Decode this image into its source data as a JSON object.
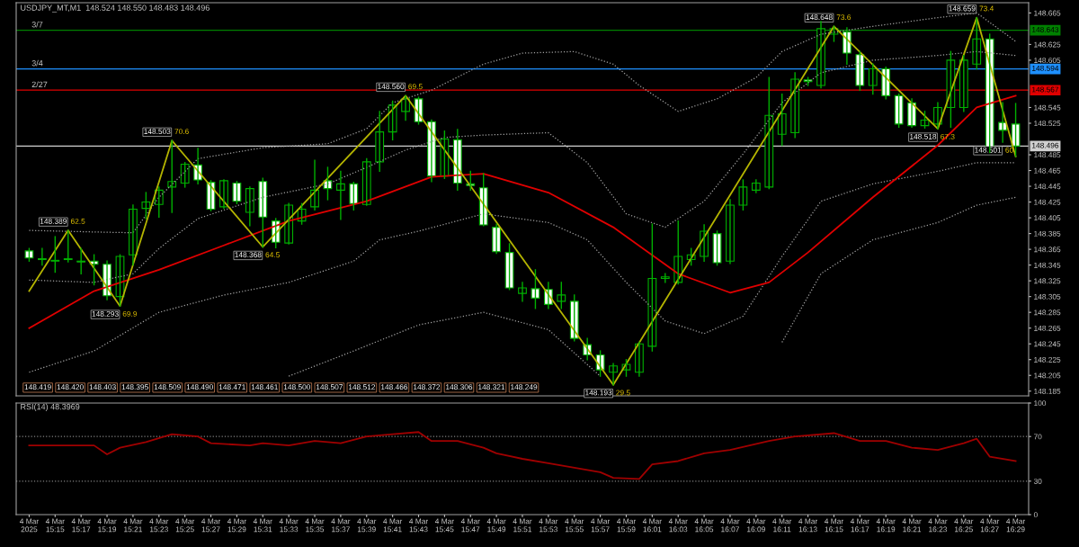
{
  "chart_data": [
    {
      "type": "candlestick",
      "title": "USDJPY_MT,M1  148.524 148.550 148.483 148.496",
      "tick_labels": "y",
      "xlim": [
        "2025-03-04T15:12",
        "2025-03-04T16:30"
      ],
      "ylim": [
        148.179,
        148.678
      ],
      "yticks": [
        148.185,
        148.205,
        148.225,
        148.245,
        148.265,
        148.285,
        148.305,
        148.325,
        148.345,
        148.365,
        148.385,
        148.405,
        148.425,
        148.445,
        148.465,
        148.485,
        148.525,
        148.545,
        148.605,
        148.625,
        148.665
      ],
      "series": [
        {
          "type": "line",
          "color": "#a0a0a0",
          "line_style": "dotted",
          "x": [
            "2025-03-04T15:13",
            "2025-03-04T15:18",
            "2025-03-04T15:21",
            "2025-03-04T15:23",
            "2025-03-04T15:26",
            "2025-03-04T15:31",
            "2025-03-04T15:36",
            "2025-03-04T15:39",
            "2025-03-04T15:41",
            "2025-03-04T15:44",
            "2025-03-04T15:48",
            "2025-03-04T15:51",
            "2025-03-04T15:55",
            "2025-03-04T15:58",
            "2025-03-04T16:00",
            "2025-03-04T16:03",
            "2025-03-04T16:06",
            "2025-03-04T16:09",
            "2025-03-04T16:11",
            "2025-03-04T16:14",
            "2025-03-04T16:18",
            "2025-03-04T16:23",
            "2025-03-04T16:26",
            "2025-03-04T16:29"
          ],
          "values": [
            148.389,
            148.387,
            148.386,
            148.431,
            148.48,
            148.494,
            148.499,
            148.518,
            148.551,
            148.567,
            148.6,
            148.614,
            148.616,
            148.6,
            148.573,
            148.54,
            148.556,
            148.583,
            148.616,
            148.638,
            148.648,
            148.659,
            148.665,
            148.629
          ]
        },
        {
          "type": "line",
          "color": "#a0a0a0",
          "line_style": "dotted",
          "x": [
            "2025-03-04T15:13",
            "2025-03-04T15:18",
            "2025-03-04T15:21",
            "2025-03-04T15:23",
            "2025-03-04T15:26",
            "2025-03-04T15:31",
            "2025-03-04T15:36",
            "2025-03-04T15:39",
            "2025-03-04T15:42",
            "2025-03-04T15:45",
            "2025-03-04T15:48",
            "2025-03-04T15:53",
            "2025-03-04T15:56",
            "2025-03-04T15:59",
            "2025-03-04T16:02",
            "2025-03-04T16:05",
            "2025-03-04T16:08",
            "2025-03-04T16:11",
            "2025-03-04T16:14",
            "2025-03-04T16:18",
            "2025-03-04T16:23",
            "2025-03-04T16:26",
            "2025-03-04T16:29"
          ],
          "values": [
            148.326,
            148.323,
            148.334,
            148.366,
            148.404,
            148.431,
            148.448,
            148.469,
            148.491,
            148.507,
            148.51,
            148.513,
            148.475,
            148.41,
            148.393,
            148.426,
            148.486,
            148.551,
            148.589,
            148.605,
            148.611,
            148.616,
            148.611
          ]
        },
        {
          "type": "line",
          "color": "#a0a0a0",
          "line_style": "dotted",
          "x": [
            "2025-03-04T15:13",
            "2025-03-04T15:18",
            "2025-03-04T15:23",
            "2025-03-04T15:28",
            "2025-03-04T15:33",
            "2025-03-04T15:38",
            "2025-03-04T15:40",
            "2025-03-04T15:43",
            "2025-03-04T15:48",
            "2025-03-04T15:53",
            "2025-03-04T15:56",
            "2025-03-04T15:59",
            "2025-03-04T16:02",
            "2025-03-04T16:05",
            "2025-03-04T16:08",
            "2025-03-04T16:11",
            "2025-03-04T16:14",
            "2025-03-04T16:18",
            "2025-03-04T16:23",
            "2025-03-04T16:26",
            "2025-03-04T16:29"
          ],
          "values": [
            148.209,
            148.236,
            148.285,
            148.307,
            148.323,
            148.35,
            148.377,
            148.388,
            148.41,
            148.399,
            148.377,
            148.323,
            148.274,
            148.258,
            148.28,
            148.356,
            148.426,
            148.448,
            148.464,
            148.475,
            148.475
          ]
        },
        {
          "type": "line",
          "color": "#a0a0a0",
          "line_style": "dotted",
          "x": [
            "2025-03-04T15:33",
            "2025-03-04T15:38",
            "2025-03-04T15:43",
            "2025-03-04T15:48",
            "2025-03-04T15:53",
            "2025-03-04T15:57",
            "2025-03-04T16:03",
            "2025-03-04T16:11",
            "2025-03-04T16:14",
            "2025-03-04T16:18",
            "2025-03-04T16:23",
            "2025-03-04T16:26",
            "2025-03-04T16:29"
          ],
          "values": [
            148.204,
            148.236,
            148.269,
            148.285,
            148.263,
            148.204,
            null,
            148.247,
            148.334,
            148.377,
            148.399,
            148.421,
            148.431
          ]
        },
        {
          "type": "line",
          "color": "#e00000",
          "line_style": "solid",
          "x": [
            "2025-03-04T15:13",
            "2025-03-04T15:18",
            "2025-03-04T15:23",
            "2025-03-04T15:28",
            "2025-03-04T15:33",
            "2025-03-04T15:39",
            "2025-03-04T15:44",
            "2025-03-04T15:48",
            "2025-03-04T15:53",
            "2025-03-04T15:58",
            "2025-03-04T16:03",
            "2025-03-04T16:07",
            "2025-03-04T16:10",
            "2025-03-04T16:13",
            "2025-03-04T16:18",
            "2025-03-04T16:23",
            "2025-03-04T16:26",
            "2025-03-04T16:29"
          ],
          "values": [
            148.265,
            148.312,
            148.339,
            148.37,
            148.401,
            148.426,
            148.457,
            148.461,
            148.437,
            148.393,
            148.334,
            148.31,
            148.323,
            148.361,
            148.431,
            148.497,
            148.545,
            148.56
          ]
        },
        {
          "type": "line",
          "color": "#b4b400",
          "line_style": "solid",
          "x": [
            "2025-03-04T15:13",
            "2025-03-04T15:16",
            "2025-03-04T15:20",
            "2025-03-04T15:24",
            "2025-03-04T15:31",
            "2025-03-04T15:42",
            "2025-03-04T15:58",
            "2025-03-04T16:15",
            "2025-03-04T16:23",
            "2025-03-04T16:26",
            "2025-03-04T16:29"
          ],
          "values": [
            148.312,
            148.389,
            148.293,
            148.503,
            148.368,
            148.56,
            148.193,
            148.648,
            148.518,
            148.659,
            148.483
          ]
        },
        {
          "type": "candlestick",
          "color": "#00b000",
          "x": [
            "2025-03-04T15:13",
            "2025-03-04T15:14",
            "2025-03-04T15:15",
            "2025-03-04T15:16",
            "2025-03-04T15:17",
            "2025-03-04T15:18",
            "2025-03-04T15:19",
            "2025-03-04T15:20",
            "2025-03-04T15:21",
            "2025-03-04T15:22",
            "2025-03-04T15:23",
            "2025-03-04T15:24",
            "2025-03-04T15:25",
            "2025-03-04T15:26",
            "2025-03-04T15:27",
            "2025-03-04T15:28",
            "2025-03-04T15:29",
            "2025-03-04T15:30",
            "2025-03-04T15:31",
            "2025-03-04T15:32",
            "2025-03-04T15:33",
            "2025-03-04T15:34",
            "2025-03-04T15:35",
            "2025-03-04T15:36",
            "2025-03-04T15:37",
            "2025-03-04T15:38",
            "2025-03-04T15:39",
            "2025-03-04T15:40",
            "2025-03-04T15:41",
            "2025-03-04T15:42",
            "2025-03-04T15:43",
            "2025-03-04T15:44",
            "2025-03-04T15:45",
            "2025-03-04T15:46",
            "2025-03-04T15:47",
            "2025-03-04T15:48",
            "2025-03-04T15:49",
            "2025-03-04T15:50",
            "2025-03-04T15:51",
            "2025-03-04T15:52",
            "2025-03-04T15:53",
            "2025-03-04T15:54",
            "2025-03-04T15:55",
            "2025-03-04T15:56",
            "2025-03-04T15:57",
            "2025-03-04T15:58",
            "2025-03-04T15:59",
            "2025-03-04T16:00",
            "2025-03-04T16:01",
            "2025-03-04T16:02",
            "2025-03-04T16:03",
            "2025-03-04T16:04",
            "2025-03-04T16:05",
            "2025-03-04T16:06",
            "2025-03-04T16:07",
            "2025-03-04T16:08",
            "2025-03-04T16:09",
            "2025-03-04T16:10",
            "2025-03-04T16:11",
            "2025-03-04T16:12",
            "2025-03-04T16:13",
            "2025-03-04T16:14",
            "2025-03-04T16:15",
            "2025-03-04T16:16",
            "2025-03-04T16:17",
            "2025-03-04T16:18",
            "2025-03-04T16:19",
            "2025-03-04T16:20",
            "2025-03-04T16:21",
            "2025-03-04T16:22",
            "2025-03-04T16:23",
            "2025-03-04T16:24",
            "2025-03-04T16:25",
            "2025-03-04T16:26",
            "2025-03-04T16:27",
            "2025-03-04T16:28",
            "2025-03-04T16:29"
          ],
          "ohlc": [
            [
              148.363,
              148.366,
              148.35,
              148.354
            ],
            [
              148.353,
              148.366,
              148.345,
              148.352
            ],
            [
              148.35,
              148.381,
              148.336,
              148.351
            ],
            [
              148.352,
              148.389,
              148.349,
              148.353
            ],
            [
              148.35,
              148.366,
              148.334,
              148.349
            ],
            [
              148.35,
              148.358,
              148.32,
              148.346
            ],
            [
              148.346,
              148.35,
              148.301,
              148.306
            ],
            [
              148.305,
              148.358,
              148.293,
              148.356
            ],
            [
              148.358,
              148.421,
              148.345,
              148.416
            ],
            [
              148.417,
              148.437,
              148.404,
              148.425
            ],
            [
              148.422,
              148.444,
              148.406,
              148.44
            ],
            [
              148.444,
              148.503,
              148.412,
              148.451
            ],
            [
              148.449,
              148.475,
              148.444,
              148.473
            ],
            [
              148.472,
              148.493,
              148.448,
              148.453
            ],
            [
              148.45,
              148.452,
              148.414,
              148.416
            ],
            [
              148.419,
              148.453,
              148.417,
              148.452
            ],
            [
              148.449,
              148.451,
              148.423,
              148.426
            ],
            [
              148.412,
              148.444,
              148.395,
              148.442
            ],
            [
              148.451,
              148.455,
              148.368,
              148.406
            ],
            [
              148.401,
              148.404,
              148.367,
              148.374
            ],
            [
              148.373,
              148.423,
              148.372,
              148.421
            ],
            [
              148.401,
              148.423,
              148.397,
              148.416
            ],
            [
              148.419,
              148.478,
              148.415,
              148.44
            ],
            [
              148.452,
              148.469,
              148.428,
              148.442
            ],
            [
              148.44,
              148.464,
              148.403,
              148.448
            ],
            [
              148.448,
              148.45,
              148.415,
              148.423
            ],
            [
              148.422,
              148.48,
              148.421,
              148.476
            ],
            [
              148.476,
              148.54,
              148.464,
              148.514
            ],
            [
              148.514,
              148.553,
              148.504,
              148.548
            ],
            [
              148.54,
              148.56,
              148.529,
              148.556
            ],
            [
              148.556,
              148.558,
              148.524,
              148.527
            ],
            [
              148.527,
              148.529,
              148.451,
              148.458
            ],
            [
              148.458,
              148.515,
              148.455,
              148.505
            ],
            [
              148.504,
              148.517,
              148.44,
              148.449
            ],
            [
              148.448,
              148.464,
              148.44,
              148.446
            ],
            [
              148.443,
              148.461,
              148.395,
              148.396
            ],
            [
              148.393,
              148.397,
              148.36,
              148.362
            ],
            [
              148.361,
              148.372,
              148.314,
              148.316
            ],
            [
              148.309,
              148.323,
              148.299,
              148.316
            ],
            [
              148.315,
              148.339,
              148.29,
              148.303
            ],
            [
              148.314,
              148.323,
              148.29,
              148.295
            ],
            [
              148.299,
              148.323,
              148.29,
              148.307
            ],
            [
              148.299,
              148.307,
              148.249,
              148.252
            ],
            [
              148.244,
              148.252,
              148.225,
              148.231
            ],
            [
              148.231,
              148.236,
              148.204,
              148.212
            ],
            [
              148.209,
              148.22,
              148.193,
              148.217
            ],
            [
              148.212,
              148.225,
              148.204,
              148.219
            ],
            [
              148.209,
              148.247,
              148.204,
              148.245
            ],
            [
              148.242,
              148.397,
              148.236,
              148.328
            ],
            [
              148.328,
              148.334,
              148.323,
              148.33
            ],
            [
              148.323,
              148.401,
              148.321,
              148.356
            ],
            [
              148.352,
              148.366,
              148.345,
              148.358
            ],
            [
              148.356,
              148.396,
              148.35,
              148.388
            ],
            [
              148.385,
              148.388,
              148.345,
              148.348
            ],
            [
              148.35,
              148.428,
              148.347,
              148.421
            ],
            [
              148.421,
              148.453,
              148.415,
              148.444
            ],
            [
              148.44,
              148.453,
              148.437,
              148.449
            ],
            [
              148.444,
              148.583,
              148.442,
              148.535
            ],
            [
              148.511,
              148.562,
              148.497,
              148.537
            ],
            [
              148.513,
              148.589,
              148.507,
              148.581
            ],
            [
              148.58,
              148.583,
              148.573,
              148.578
            ],
            [
              148.573,
              148.654,
              148.57,
              148.645
            ],
            [
              148.638,
              148.648,
              148.629,
              148.645
            ],
            [
              148.641,
              148.646,
              148.6,
              148.614
            ],
            [
              148.612,
              148.616,
              148.567,
              148.573
            ],
            [
              148.573,
              148.6,
              148.562,
              148.594
            ],
            [
              148.594,
              148.596,
              148.556,
              148.56
            ],
            [
              148.56,
              148.562,
              148.52,
              148.524
            ],
            [
              148.551,
              148.556,
              148.52,
              148.522
            ],
            [
              148.522,
              148.54,
              148.519,
              148.529
            ],
            [
              148.524,
              148.551,
              148.518,
              148.545
            ],
            [
              148.545,
              148.616,
              148.52,
              148.605
            ],
            [
              148.545,
              148.611,
              148.54,
              148.605
            ],
            [
              148.6,
              148.659,
              148.594,
              148.632
            ],
            [
              148.632,
              148.638,
              148.488,
              148.494
            ],
            [
              148.526,
              148.551,
              148.501,
              148.516
            ],
            [
              148.524,
              148.55,
              148.483,
              148.496
            ]
          ],
          "colors": [
            "#ffffff",
            "#ffffff",
            "#000000",
            "#000000",
            "#ffffff",
            "#ffffff",
            "#ffffff",
            "#000000",
            "#000000",
            "#000000",
            "#000000",
            "#000000",
            "#000000",
            "#ffffff",
            "#ffffff",
            "#000000",
            "#ffffff",
            "#000000",
            "#ffffff",
            "#ffffff",
            "#000000",
            "#000000",
            "#000000",
            "#ffffff",
            "#000000",
            "#ffffff",
            "#000000",
            "#000000",
            "#000000",
            "#000000",
            "#ffffff",
            "#ffffff",
            "#000000",
            "#ffffff",
            "#ffffff",
            "#ffffff",
            "#ffffff",
            "#ffffff",
            "#000000",
            "#ffffff",
            "#ffffff",
            "#000000",
            "#ffffff",
            "#ffffff",
            "#ffffff",
            "#000000",
            "#000000",
            "#000000",
            "#000000",
            "#000000",
            "#000000",
            "#000000",
            "#000000",
            "#ffffff",
            "#000000",
            "#000000",
            "#000000",
            "#000000",
            "#000000",
            "#000000",
            "#ffffff",
            "#000000",
            "#000000",
            "#ffffff",
            "#ffffff",
            "#000000",
            "#ffffff",
            "#ffffff",
            "#ffffff",
            "#000000",
            "#000000",
            "#000000",
            "#000000",
            "#000000",
            "#ffffff",
            "#ffffff",
            "#ffffff"
          ]
        }
      ],
      "ref_lines": [
        {
          "axis": "y",
          "value": 148.643,
          "label": "148.643",
          "color": "#008000"
        },
        {
          "axis": "y",
          "value": 148.594,
          "label": "148.594",
          "color": "#1e90ff"
        },
        {
          "axis": "y",
          "value": 148.567,
          "label": "148.567",
          "color": "#e00000"
        },
        {
          "axis": "y",
          "value": 148.496,
          "label": "148.496",
          "color": "#d0d0d0"
        }
      ],
      "annotations": [
        {
          "text": "3/7",
          "x": "2025-03-04T15:13",
          "y": 148.643
        },
        {
          "text": "3/4",
          "x": "2025-03-04T15:13",
          "y": 148.594
        },
        {
          "text": "2/27",
          "x": "2025-03-04T15:13",
          "y": 148.567
        },
        {
          "text": "148.389",
          "x": "2025-03-04T15:16",
          "y": 148.389
        },
        {
          "text": "62.5",
          "x": "2025-03-04T15:16",
          "y": 148.389
        },
        {
          "text": "148.293",
          "x": "2025-03-04T15:20",
          "y": 148.293
        },
        {
          "text": "69.9",
          "x": "2025-03-04T15:20",
          "y": 148.293
        },
        {
          "text": "148.503",
          "x": "2025-03-04T15:24",
          "y": 148.503
        },
        {
          "text": "70.6",
          "x": "2025-03-04T15:24",
          "y": 148.503
        },
        {
          "text": "148.368",
          "x": "2025-03-04T15:31",
          "y": 148.368
        },
        {
          "text": "64.5",
          "x": "2025-03-04T15:31",
          "y": 148.368
        },
        {
          "text": "148.560",
          "x": "2025-03-04T15:42",
          "y": 148.56
        },
        {
          "text": "69.5",
          "x": "2025-03-04T15:42",
          "y": 148.56
        },
        {
          "text": "148.193",
          "x": "2025-03-04T15:58",
          "y": 148.193
        },
        {
          "text": "29.5",
          "x": "2025-03-04T15:58",
          "y": 148.193
        },
        {
          "text": "148.648",
          "x": "2025-03-04T16:15",
          "y": 148.648
        },
        {
          "text": "73.6",
          "x": "2025-03-04T16:15",
          "y": 148.648
        },
        {
          "text": "148.518",
          "x": "2025-03-04T16:23",
          "y": 148.518
        },
        {
          "text": "67.3",
          "x": "2025-03-04T16:23",
          "y": 148.518
        },
        {
          "text": "148.659",
          "x": "2025-03-04T16:26",
          "y": 148.659
        },
        {
          "text": "73.4",
          "x": "2025-03-04T16:26",
          "y": 148.659
        },
        {
          "text": "148.501",
          "x": "2025-03-04T16:28",
          "y": 148.501
        },
        {
          "text": "60",
          "x": "2025-03-04T16:28",
          "y": 148.501
        },
        "148.419",
        "148.420",
        "148.403",
        "148.395",
        "148.509",
        "148.490",
        "148.471",
        "148.461",
        "148.500",
        "148.507",
        "148.512",
        "148.466",
        "148.372",
        "148.306",
        "148.321",
        "148.249"
      ]
    },
    {
      "type": "line",
      "title": "RSI(14) 48.3969",
      "xlim": [
        "2025-03-04T15:12",
        "2025-03-04T16:30"
      ],
      "ylim": [
        0,
        100
      ],
      "yticks": [
        0,
        30,
        70,
        100
      ],
      "xticks": [
        {
          "value": "2025-03-04T15:13",
          "label": "4 Mar 2025"
        },
        {
          "value": "2025-03-04T15:15",
          "label": "4 Mar 15:15"
        },
        {
          "value": "2025-03-04T15:17",
          "label": "4 Mar 15:17"
        },
        {
          "value": "2025-03-04T15:19",
          "label": "4 Mar 15:19"
        },
        {
          "value": "2025-03-04T15:21",
          "label": "4 Mar 15:21"
        },
        {
          "value": "2025-03-04T15:23",
          "label": "4 Mar 15:23"
        },
        {
          "value": "2025-03-04T15:25",
          "label": "4 Mar 15:25"
        },
        {
          "value": "2025-03-04T15:27",
          "label": "4 Mar 15:27"
        },
        {
          "value": "2025-03-04T15:29",
          "label": "4 Mar 15:29"
        },
        {
          "value": "2025-03-04T15:31",
          "label": "4 Mar 15:31"
        },
        {
          "value": "2025-03-04T15:33",
          "label": "4 Mar 15:33"
        },
        {
          "value": "2025-03-04T15:35",
          "label": "4 Mar 15:35"
        },
        {
          "value": "2025-03-04T15:37",
          "label": "4 Mar 15:37"
        },
        {
          "value": "2025-03-04T15:39",
          "label": "4 Mar 15:39"
        },
        {
          "value": "2025-03-04T15:41",
          "label": "4 Mar 15:41"
        },
        {
          "value": "2025-03-04T15:43",
          "label": "4 Mar 15:43"
        },
        {
          "value": "2025-03-04T15:45",
          "label": "4 Mar 15:45"
        },
        {
          "value": "2025-03-04T15:47",
          "label": "4 Mar 15:47"
        },
        {
          "value": "2025-03-04T15:49",
          "label": "4 Mar 15:49"
        },
        {
          "value": "2025-03-04T15:51",
          "label": "4 Mar 15:51"
        },
        {
          "value": "2025-03-04T15:53",
          "label": "4 Mar 15:53"
        },
        {
          "value": "2025-03-04T15:55",
          "label": "4 Mar 15:55"
        },
        {
          "value": "2025-03-04T15:57",
          "label": "4 Mar 15:57"
        },
        {
          "value": "2025-03-04T15:59",
          "label": "4 Mar 15:59"
        },
        {
          "value": "2025-03-04T16:01",
          "label": "4 Mar 16:01"
        },
        {
          "value": "2025-03-04T16:03",
          "label": "4 Mar 16:03"
        },
        {
          "value": "2025-03-04T16:05",
          "label": "4 Mar 16:05"
        },
        {
          "value": "2025-03-04T16:07",
          "label": "4 Mar 16:07"
        },
        {
          "value": "2025-03-04T16:09",
          "label": "4 Mar 16:09"
        },
        {
          "value": "2025-03-04T16:11",
          "label": "4 Mar 16:11"
        },
        {
          "value": "2025-03-04T16:13",
          "label": "4 Mar 16:13"
        },
        {
          "value": "2025-03-04T16:15",
          "label": "4 Mar 16:15"
        },
        {
          "value": "2025-03-04T16:17",
          "label": "4 Mar 16:17"
        },
        {
          "value": "2025-03-04T16:19",
          "label": "4 Mar 16:19"
        },
        {
          "value": "2025-03-04T16:21",
          "label": "4 Mar 16:21"
        },
        {
          "value": "2025-03-04T16:23",
          "label": "4 Mar 16:23"
        },
        {
          "value": "2025-03-04T16:25",
          "label": "4 Mar 16:25"
        },
        {
          "value": "2025-03-04T16:27",
          "label": "4 Mar 16:27"
        },
        {
          "value": "2025-03-04T16:29",
          "label": "4 Mar 16:29"
        }
      ],
      "series": [
        {
          "color": "#a00000",
          "x": [
            "2025-03-04T15:13",
            "2025-03-04T15:18",
            "2025-03-04T15:19",
            "2025-03-04T15:20",
            "2025-03-04T15:22",
            "2025-03-04T15:24",
            "2025-03-04T15:26",
            "2025-03-04T15:27",
            "2025-03-04T15:30",
            "2025-03-04T15:31",
            "2025-03-04T15:33",
            "2025-03-04T15:35",
            "2025-03-04T15:37",
            "2025-03-04T15:39",
            "2025-03-04T15:41",
            "2025-03-04T15:43",
            "2025-03-04T15:44",
            "2025-03-04T15:46",
            "2025-03-04T15:48",
            "2025-03-04T15:49",
            "2025-03-04T15:51",
            "2025-03-04T15:53",
            "2025-03-04T15:55",
            "2025-03-04T15:57",
            "2025-03-04T15:58",
            "2025-03-04T16:00",
            "2025-03-04T16:01",
            "2025-03-04T16:03",
            "2025-03-04T16:05",
            "2025-03-04T16:07",
            "2025-03-04T16:10",
            "2025-03-04T16:12",
            "2025-03-04T16:15",
            "2025-03-04T16:17",
            "2025-03-04T16:19",
            "2025-03-04T16:21",
            "2025-03-04T16:23",
            "2025-03-04T16:25",
            "2025-03-04T16:26",
            "2025-03-04T16:27",
            "2025-03-04T16:29"
          ],
          "values": [
            62,
            62,
            54,
            60,
            65,
            72,
            70,
            64,
            62,
            64,
            62,
            66,
            64,
            70,
            72,
            74,
            66,
            66,
            60,
            55,
            50,
            46,
            42,
            38,
            33,
            32,
            45,
            48,
            55,
            58,
            66,
            70,
            73,
            66,
            66,
            60,
            58,
            64,
            68,
            52,
            48
          ]
        }
      ],
      "ref_lines": [
        {
          "axis": "y",
          "value": 70,
          "color": "#808080",
          "line_style": "dotted"
        },
        {
          "axis": "y",
          "value": 30,
          "color": "#808080",
          "line_style": "dotted"
        }
      ]
    }
  ]
}
